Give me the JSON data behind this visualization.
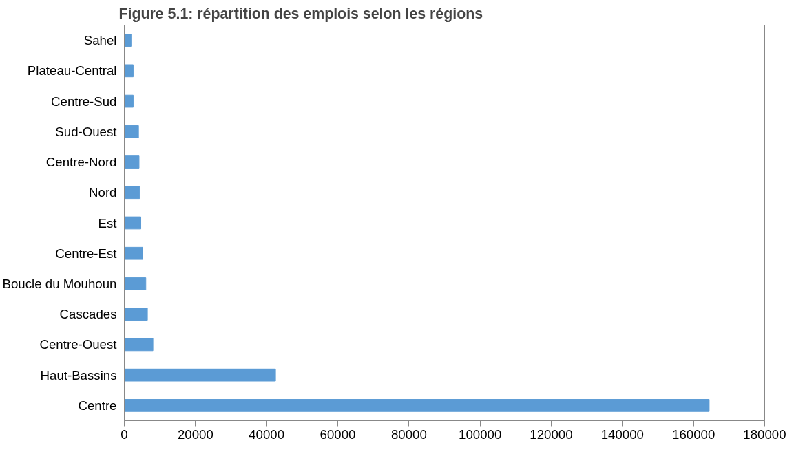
{
  "chart_data": {
    "type": "bar",
    "orientation": "horizontal",
    "title": "Figure 5.1: répartition des emplois selon les régions",
    "categories": [
      "Sahel",
      "Plateau-Central",
      "Centre-Sud",
      "Sud-Ouest",
      "Centre-Nord",
      "Nord",
      "Est",
      "Centre-Est",
      "Boucle du Mouhoun",
      "Cascades",
      "Centre-Ouest",
      "Haut-Bassins",
      "Centre"
    ],
    "values": [
      1900,
      2500,
      2500,
      4000,
      4150,
      4300,
      4650,
      5200,
      6050,
      6500,
      8050,
      42500,
      164400
    ],
    "color": "#5b9bd5",
    "xlim": [
      0,
      180000
    ],
    "xticks": [
      0,
      20000,
      40000,
      60000,
      80000,
      100000,
      120000,
      140000,
      160000,
      180000
    ],
    "grid": false
  }
}
